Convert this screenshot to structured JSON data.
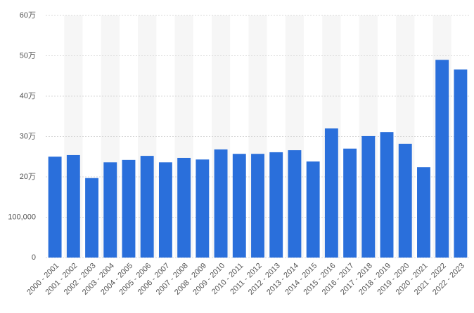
{
  "chart_data": {
    "type": "bar",
    "categories": [
      "2000 - 2001",
      "2001 - 2002",
      "2002 - 2003",
      "2003 - 2004",
      "2004 - 2005",
      "2005 - 2006",
      "2006 - 2007",
      "2007 - 2008",
      "2008 - 2009",
      "2009 - 2010",
      "2010 - 2011",
      "2011 - 2012",
      "2012 - 2013",
      "2013 - 2014",
      "2014 - 2015",
      "2015 - 2016",
      "2016 - 2017",
      "2017 - 2018",
      "2018 - 2019",
      "2019 - 2020",
      "2020 - 2021",
      "2021 - 2022",
      "2022 - 2023"
    ],
    "values": [
      250000,
      254000,
      197000,
      236000,
      242000,
      252000,
      236000,
      247000,
      243000,
      268000,
      257000,
      257000,
      261000,
      266000,
      238000,
      320000,
      270000,
      301000,
      311000,
      282000,
      224000,
      490000,
      466000
    ],
    "color": "#2a6fdb",
    "ylim": [
      0,
      600000
    ],
    "yticks": [
      0,
      {
        "value": 100000,
        "label": "100,000"
      },
      {
        "value": 200000,
        "label": "20万"
      },
      {
        "value": 300000,
        "label": "30万"
      },
      {
        "value": 400000,
        "label": "40万"
      },
      {
        "value": 500000,
        "label": "50万"
      },
      {
        "value": 600000,
        "label": "60万"
      }
    ],
    "grid": true
  }
}
